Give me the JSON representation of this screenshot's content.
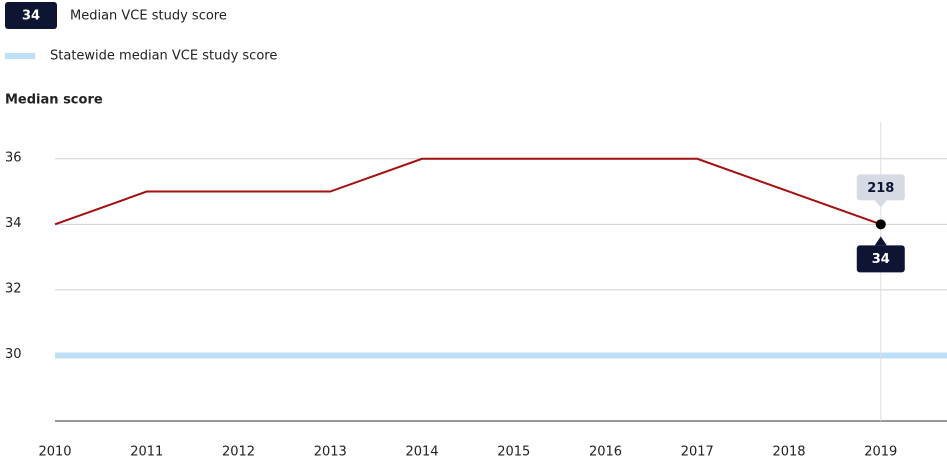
{
  "chart_data": {
    "type": "line",
    "y_label": "Median score",
    "x": [
      2010,
      2011,
      2012,
      2013,
      2014,
      2015,
      2016,
      2017,
      2018,
      2019
    ],
    "series": [
      {
        "name": "Median VCE study score",
        "color": "#a50f0f",
        "values": [
          34,
          35,
          35,
          35,
          36,
          36,
          36,
          36,
          35,
          34
        ]
      }
    ],
    "reference": {
      "name": "Statewide median VCE study score",
      "color": "#bde0f6",
      "value": 30
    },
    "xlim": [
      2010,
      2019.7
    ],
    "xticks": [
      2010,
      2011,
      2012,
      2013,
      2014,
      2015,
      2016,
      2017,
      2018,
      2019
    ],
    "ylim": [
      28,
      37
    ],
    "yticks": [
      30,
      32,
      34,
      36
    ],
    "grid": true,
    "highlight_x": 2019,
    "highlight_count": 218
  }
}
